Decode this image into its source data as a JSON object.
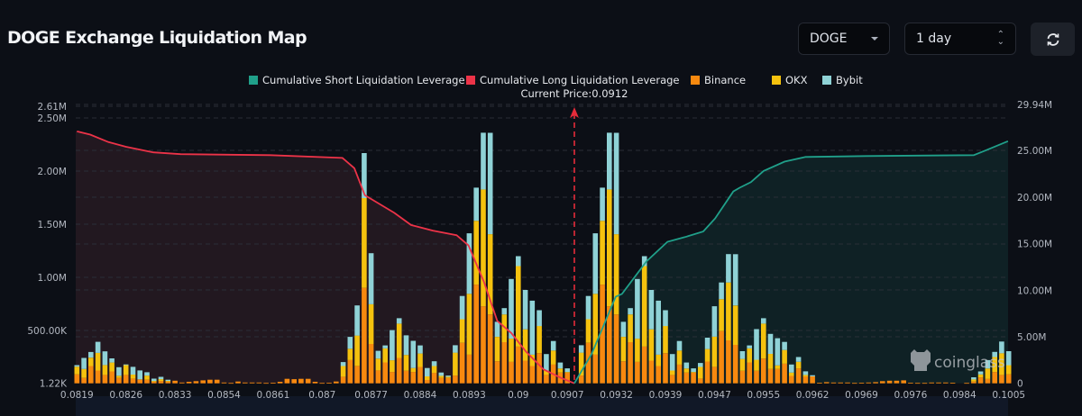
{
  "header": {
    "title": "DOGE Exchange Liquidation Map",
    "symbol_select": {
      "value": "DOGE",
      "icon": "caret-down-icon"
    },
    "range_select": {
      "value": "1 day",
      "icon": "up-down-chevron-icon"
    },
    "refresh_icon": "refresh-icon"
  },
  "watermark": "coinglass",
  "chart_data": {
    "type": "bar",
    "stacked": true,
    "legend": {
      "placement": "top-center",
      "items": [
        {
          "label": "Cumulative Short Liquidation Leverage",
          "color": "#20a08a"
        },
        {
          "label": "Cumulative Long Liquidation Leverage",
          "color": "#ec3348"
        },
        {
          "label": "Binance",
          "color": "#f7890f"
        },
        {
          "label": "OKX",
          "color": "#f5c20e"
        },
        {
          "label": "Bybit",
          "color": "#8fd2d6"
        }
      ]
    },
    "current_price_label": "Current Price:0.0912",
    "current_price_bar_index": 71,
    "x_tick_labels": [
      "0.0819",
      "0.0826",
      "0.0833",
      "0.0854",
      "0.0861",
      "0.087",
      "0.0877",
      "0.0884",
      "0.0893",
      "0.09",
      "0.0907",
      "0.0932",
      "0.0939",
      "0.0947",
      "0.0955",
      "0.0962",
      "0.0969",
      "0.0976",
      "0.0984",
      "0.1005"
    ],
    "x_tick_every_n_bars": 7,
    "left_axis": {
      "ticks": [
        {
          "label": "2.61M",
          "value": 2610
        },
        {
          "label": "2.50M",
          "value": 2500
        },
        {
          "label": "2.00M",
          "value": 2000
        },
        {
          "label": "1.50M",
          "value": 1500
        },
        {
          "label": "1.00M",
          "value": 1000
        },
        {
          "label": "500.00K",
          "value": 500
        },
        {
          "label": "1.22K",
          "value": 1.22
        }
      ],
      "range_thousands": [
        1.22,
        2610
      ]
    },
    "right_axis": {
      "ticks": [
        {
          "label": "29.94M",
          "value": 29.94
        },
        {
          "label": "25.00M",
          "value": 25
        },
        {
          "label": "20.00M",
          "value": 20
        },
        {
          "label": "15.00M",
          "value": 15
        },
        {
          "label": "10.00M",
          "value": 10
        },
        {
          "label": "5.00M",
          "value": 5
        },
        {
          "label": "0",
          "value": 0
        }
      ],
      "range_millions": [
        0,
        29.94
      ]
    },
    "grid": true,
    "bar_series_order": [
      "Binance",
      "OKX",
      "Bybit"
    ],
    "bars_thousands": [
      [
        84,
        73,
        14
      ],
      [
        51,
        84,
        104
      ],
      [
        163,
        79,
        53
      ],
      [
        121,
        166,
        104
      ],
      [
        79,
        93,
        129
      ],
      [
        112,
        84,
        39
      ],
      [
        51,
        20,
        81
      ],
      [
        79,
        93,
        6
      ],
      [
        45,
        37,
        73
      ],
      [
        37,
        0,
        84
      ],
      [
        34,
        39,
        31
      ],
      [
        14,
        8,
        22
      ],
      [
        22,
        17,
        22
      ],
      [
        17,
        6,
        11
      ],
      [
        25,
        0,
        0
      ],
      [
        8,
        0,
        0
      ],
      [
        14,
        0,
        0
      ],
      [
        20,
        0,
        0
      ],
      [
        28,
        0,
        0
      ],
      [
        34,
        0,
        0
      ],
      [
        34,
        0,
        0
      ],
      [
        8,
        0,
        0
      ],
      [
        3,
        0,
        0
      ],
      [
        17,
        0,
        0
      ],
      [
        8,
        0,
        0
      ],
      [
        8,
        0,
        0
      ],
      [
        8,
        0,
        0
      ],
      [
        3,
        0,
        0
      ],
      [
        5,
        0,
        0
      ],
      [
        14,
        0,
        0
      ],
      [
        42,
        0,
        0
      ],
      [
        39,
        0,
        0
      ],
      [
        42,
        0,
        0
      ],
      [
        42,
        0,
        0
      ],
      [
        14,
        0,
        0
      ],
      [
        3,
        0,
        0
      ],
      [
        6,
        0,
        0
      ],
      [
        17,
        0,
        0
      ],
      [
        62,
        101,
        37
      ],
      [
        219,
        107,
        112
      ],
      [
        163,
        287,
        284
      ],
      [
        899,
        846,
        424
      ],
      [
        371,
        374,
        481
      ],
      [
        121,
        112,
        73
      ],
      [
        197,
        132,
        28
      ],
      [
        107,
        110,
        284
      ],
      [
        239,
        323,
        51
      ],
      [
        118,
        149,
        185
      ],
      [
        107,
        37,
        256
      ],
      [
        155,
        126,
        76
      ],
      [
        31,
        34,
        79
      ],
      [
        98,
        65,
        45
      ],
      [
        51,
        20,
        31
      ],
      [
        51,
        11,
        11
      ],
      [
        73,
        216,
        70
      ],
      [
        382,
        222,
        219
      ],
      [
        270,
        573,
        570
      ],
      [
        930,
        601,
        312
      ],
      [
        725,
        1102,
        534
      ],
      [
        649,
        756,
        955
      ],
      [
        208,
        230,
        141
      ],
      [
        388,
        261,
        59
      ],
      [
        202,
        219,
        562
      ],
      [
        346,
        759,
        93
      ],
      [
        214,
        295,
        371
      ],
      [
        163,
        107,
        509
      ],
      [
        284,
        256,
        149
      ],
      [
        79,
        42,
        155
      ],
      [
        177,
        132,
        90
      ],
      [
        101,
        39,
        56
      ],
      [
        101,
        6,
        34
      ],
      [
        0,
        0,
        0
      ],
      [
        73,
        216,
        70
      ],
      [
        382,
        222,
        219
      ],
      [
        270,
        573,
        570
      ],
      [
        930,
        601,
        312
      ],
      [
        725,
        1102,
        534
      ],
      [
        649,
        756,
        955
      ],
      [
        208,
        230,
        141
      ],
      [
        388,
        261,
        59
      ],
      [
        202,
        219,
        562
      ],
      [
        346,
        759,
        93
      ],
      [
        214,
        295,
        371
      ],
      [
        163,
        107,
        509
      ],
      [
        284,
        256,
        149
      ],
      [
        79,
        42,
        155
      ],
      [
        177,
        132,
        90
      ],
      [
        101,
        39,
        56
      ],
      [
        101,
        6,
        34
      ],
      [
        45,
        110,
        37
      ],
      [
        205,
        118,
        107
      ],
      [
        155,
        284,
        287
      ],
      [
        492,
        301,
        157
      ],
      [
        405,
        545,
        267
      ],
      [
        362,
        371,
        483
      ],
      [
        118,
        112,
        73
      ],
      [
        197,
        132,
        28
      ],
      [
        118,
        104,
        289
      ],
      [
        233,
        329,
        51
      ],
      [
        135,
        143,
        188
      ],
      [
        135,
        34,
        256
      ],
      [
        185,
        129,
        76
      ],
      [
        70,
        31,
        76
      ],
      [
        141,
        62,
        45
      ],
      [
        65,
        14,
        34
      ],
      [
        65,
        0,
        11
      ],
      [
        6,
        0,
        0
      ],
      [
        11,
        0,
        0
      ],
      [
        8,
        0,
        0
      ],
      [
        8,
        0,
        0
      ],
      [
        8,
        0,
        0
      ],
      [
        3,
        0,
        0
      ],
      [
        6,
        0,
        0
      ],
      [
        8,
        0,
        0
      ],
      [
        11,
        0,
        0
      ],
      [
        20,
        0,
        0
      ],
      [
        25,
        0,
        0
      ],
      [
        25,
        0,
        0
      ],
      [
        28,
        0,
        0
      ],
      [
        6,
        0,
        0
      ],
      [
        3,
        0,
        0
      ],
      [
        3,
        0,
        0
      ],
      [
        8,
        0,
        0
      ],
      [
        8,
        0,
        0
      ],
      [
        8,
        0,
        0
      ],
      [
        6,
        0,
        0
      ],
      [
        0,
        0,
        0
      ],
      [
        3,
        0,
        0
      ],
      [
        17,
        20,
        20
      ],
      [
        56,
        28,
        28
      ],
      [
        42,
        98,
        79
      ],
      [
        107,
        141,
        48
      ],
      [
        79,
        205,
        110
      ],
      [
        84,
        87,
        132
      ]
    ],
    "lines_millions": {
      "long": [
        [
          0,
          27.05
        ],
        [
          1.9,
          26.7
        ],
        [
          4.5,
          25.9
        ],
        [
          7,
          25.4
        ],
        [
          10.9,
          24.8
        ],
        [
          14.8,
          24.6
        ],
        [
          27.6,
          24.5
        ],
        [
          37.9,
          24.2
        ],
        [
          39.6,
          23.1
        ],
        [
          41.1,
          20.2
        ],
        [
          43.1,
          19.3
        ],
        [
          45.3,
          18.3
        ],
        [
          47.7,
          17.0
        ],
        [
          50.8,
          16.4
        ],
        [
          54.2,
          15.9
        ],
        [
          55.9,
          14.8
        ],
        [
          58.1,
          10.9
        ],
        [
          60,
          6.7
        ],
        [
          62,
          5.4
        ],
        [
          64.1,
          3.4
        ],
        [
          66.6,
          1.5
        ],
        [
          69.2,
          0.55
        ],
        [
          71,
          0
        ]
      ],
      "short": [
        [
          71,
          0
        ],
        [
          73.5,
          3.2
        ],
        [
          76.9,
          9.3
        ],
        [
          77.8,
          9.6
        ],
        [
          81.3,
          13.1
        ],
        [
          84.3,
          15.2
        ],
        [
          86.8,
          15.7
        ],
        [
          89.4,
          16.3
        ],
        [
          91.1,
          17.7
        ],
        [
          93.7,
          20.6
        ],
        [
          94.6,
          21.0
        ],
        [
          96.2,
          21.6
        ],
        [
          98,
          22.8
        ],
        [
          101,
          23.8
        ],
        [
          104,
          24.3
        ],
        [
          112.6,
          24.4
        ],
        [
          128,
          24.5
        ],
        [
          129.7,
          25.0
        ],
        [
          132.9,
          26.0
        ]
      ]
    }
  }
}
